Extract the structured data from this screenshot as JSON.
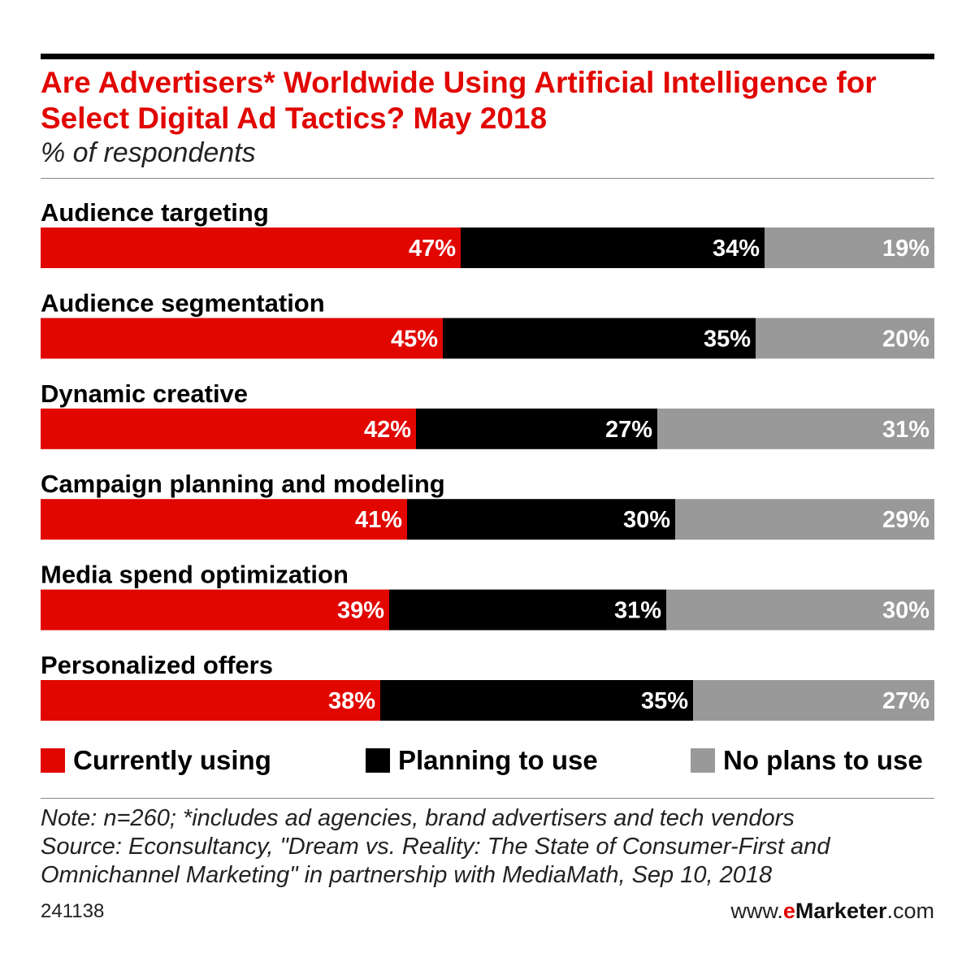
{
  "title": "Are Advertisers* Worldwide Using Artificial Intelligence for Select Digital Ad Tactics? May 2018",
  "subtitle": "% of respondents",
  "chart_data": {
    "type": "bar",
    "stacked": true,
    "orientation": "horizontal",
    "categories": [
      "Audience targeting",
      "Audience segmentation",
      "Dynamic creative",
      "Campaign planning and modeling",
      "Media spend optimization",
      "Personalized offers"
    ],
    "series": [
      {
        "name": "Currently using",
        "color": "#e10600",
        "values": [
          47,
          45,
          42,
          41,
          39,
          38
        ]
      },
      {
        "name": "Planning to use",
        "color": "#000000",
        "values": [
          34,
          35,
          27,
          30,
          31,
          35
        ]
      },
      {
        "name": "No plans to use",
        "color": "#999999",
        "values": [
          19,
          20,
          31,
          29,
          30,
          27
        ]
      }
    ],
    "value_suffix": "%",
    "legend_position": "bottom"
  },
  "note_lines": [
    "Note: n=260; *includes ad agencies, brand advertisers and tech vendors",
    "Source: Econsultancy, \"Dream vs. Reality: The State of Consumer-First and",
    "Omnichannel Marketing\" in partnership with MediaMath, Sep 10, 2018"
  ],
  "footer": {
    "id": "241138",
    "site_prefix": "www.",
    "site_brand": "e",
    "site_name": "Marketer",
    "site_suffix": ".com"
  }
}
